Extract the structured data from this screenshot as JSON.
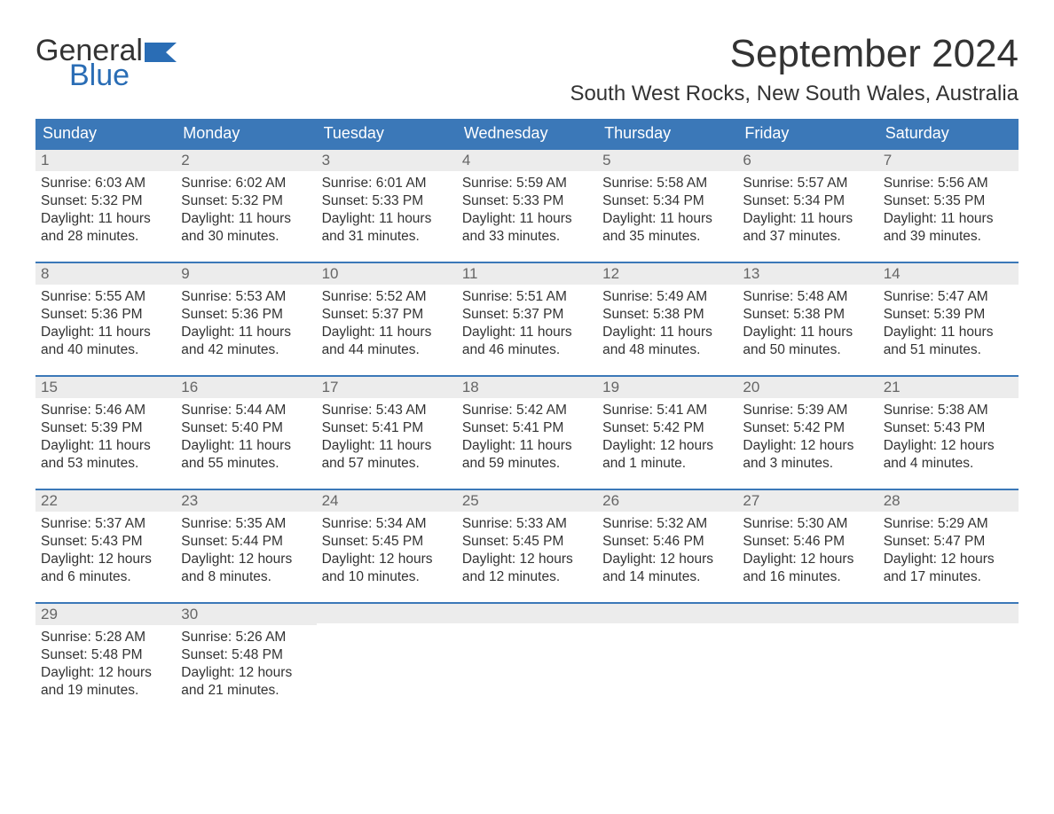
{
  "colors": {
    "header_bg": "#3b78b8",
    "header_text": "#ffffff",
    "daynum_bg": "#ececec",
    "daynum_text": "#666666",
    "body_text": "#333333",
    "logo_blue": "#2a6db5",
    "row_border": "#3b78b8",
    "page_bg": "#ffffff"
  },
  "typography": {
    "month_title_fontsize": 44,
    "location_fontsize": 24,
    "weekday_fontsize": 18,
    "daynum_fontsize": 17,
    "cell_fontsize": 15.5,
    "logo_fontsize": 34
  },
  "logo": {
    "line1": "General",
    "line2": "Blue"
  },
  "title": "September 2024",
  "location": "South West Rocks, New South Wales, Australia",
  "weekdays": [
    "Sunday",
    "Monday",
    "Tuesday",
    "Wednesday",
    "Thursday",
    "Friday",
    "Saturday"
  ],
  "calendar": {
    "type": "table",
    "columns": 7,
    "row_border_color": "#3b78b8",
    "weeks": [
      [
        {
          "day": "1",
          "sunrise": "Sunrise: 6:03 AM",
          "sunset": "Sunset: 5:32 PM",
          "dl1": "Daylight: 11 hours",
          "dl2": "and 28 minutes."
        },
        {
          "day": "2",
          "sunrise": "Sunrise: 6:02 AM",
          "sunset": "Sunset: 5:32 PM",
          "dl1": "Daylight: 11 hours",
          "dl2": "and 30 minutes."
        },
        {
          "day": "3",
          "sunrise": "Sunrise: 6:01 AM",
          "sunset": "Sunset: 5:33 PM",
          "dl1": "Daylight: 11 hours",
          "dl2": "and 31 minutes."
        },
        {
          "day": "4",
          "sunrise": "Sunrise: 5:59 AM",
          "sunset": "Sunset: 5:33 PM",
          "dl1": "Daylight: 11 hours",
          "dl2": "and 33 minutes."
        },
        {
          "day": "5",
          "sunrise": "Sunrise: 5:58 AM",
          "sunset": "Sunset: 5:34 PM",
          "dl1": "Daylight: 11 hours",
          "dl2": "and 35 minutes."
        },
        {
          "day": "6",
          "sunrise": "Sunrise: 5:57 AM",
          "sunset": "Sunset: 5:34 PM",
          "dl1": "Daylight: 11 hours",
          "dl2": "and 37 minutes."
        },
        {
          "day": "7",
          "sunrise": "Sunrise: 5:56 AM",
          "sunset": "Sunset: 5:35 PM",
          "dl1": "Daylight: 11 hours",
          "dl2": "and 39 minutes."
        }
      ],
      [
        {
          "day": "8",
          "sunrise": "Sunrise: 5:55 AM",
          "sunset": "Sunset: 5:36 PM",
          "dl1": "Daylight: 11 hours",
          "dl2": "and 40 minutes."
        },
        {
          "day": "9",
          "sunrise": "Sunrise: 5:53 AM",
          "sunset": "Sunset: 5:36 PM",
          "dl1": "Daylight: 11 hours",
          "dl2": "and 42 minutes."
        },
        {
          "day": "10",
          "sunrise": "Sunrise: 5:52 AM",
          "sunset": "Sunset: 5:37 PM",
          "dl1": "Daylight: 11 hours",
          "dl2": "and 44 minutes."
        },
        {
          "day": "11",
          "sunrise": "Sunrise: 5:51 AM",
          "sunset": "Sunset: 5:37 PM",
          "dl1": "Daylight: 11 hours",
          "dl2": "and 46 minutes."
        },
        {
          "day": "12",
          "sunrise": "Sunrise: 5:49 AM",
          "sunset": "Sunset: 5:38 PM",
          "dl1": "Daylight: 11 hours",
          "dl2": "and 48 minutes."
        },
        {
          "day": "13",
          "sunrise": "Sunrise: 5:48 AM",
          "sunset": "Sunset: 5:38 PM",
          "dl1": "Daylight: 11 hours",
          "dl2": "and 50 minutes."
        },
        {
          "day": "14",
          "sunrise": "Sunrise: 5:47 AM",
          "sunset": "Sunset: 5:39 PM",
          "dl1": "Daylight: 11 hours",
          "dl2": "and 51 minutes."
        }
      ],
      [
        {
          "day": "15",
          "sunrise": "Sunrise: 5:46 AM",
          "sunset": "Sunset: 5:39 PM",
          "dl1": "Daylight: 11 hours",
          "dl2": "and 53 minutes."
        },
        {
          "day": "16",
          "sunrise": "Sunrise: 5:44 AM",
          "sunset": "Sunset: 5:40 PM",
          "dl1": "Daylight: 11 hours",
          "dl2": "and 55 minutes."
        },
        {
          "day": "17",
          "sunrise": "Sunrise: 5:43 AM",
          "sunset": "Sunset: 5:41 PM",
          "dl1": "Daylight: 11 hours",
          "dl2": "and 57 minutes."
        },
        {
          "day": "18",
          "sunrise": "Sunrise: 5:42 AM",
          "sunset": "Sunset: 5:41 PM",
          "dl1": "Daylight: 11 hours",
          "dl2": "and 59 minutes."
        },
        {
          "day": "19",
          "sunrise": "Sunrise: 5:41 AM",
          "sunset": "Sunset: 5:42 PM",
          "dl1": "Daylight: 12 hours",
          "dl2": "and 1 minute."
        },
        {
          "day": "20",
          "sunrise": "Sunrise: 5:39 AM",
          "sunset": "Sunset: 5:42 PM",
          "dl1": "Daylight: 12 hours",
          "dl2": "and 3 minutes."
        },
        {
          "day": "21",
          "sunrise": "Sunrise: 5:38 AM",
          "sunset": "Sunset: 5:43 PM",
          "dl1": "Daylight: 12 hours",
          "dl2": "and 4 minutes."
        }
      ],
      [
        {
          "day": "22",
          "sunrise": "Sunrise: 5:37 AM",
          "sunset": "Sunset: 5:43 PM",
          "dl1": "Daylight: 12 hours",
          "dl2": "and 6 minutes."
        },
        {
          "day": "23",
          "sunrise": "Sunrise: 5:35 AM",
          "sunset": "Sunset: 5:44 PM",
          "dl1": "Daylight: 12 hours",
          "dl2": "and 8 minutes."
        },
        {
          "day": "24",
          "sunrise": "Sunrise: 5:34 AM",
          "sunset": "Sunset: 5:45 PM",
          "dl1": "Daylight: 12 hours",
          "dl2": "and 10 minutes."
        },
        {
          "day": "25",
          "sunrise": "Sunrise: 5:33 AM",
          "sunset": "Sunset: 5:45 PM",
          "dl1": "Daylight: 12 hours",
          "dl2": "and 12 minutes."
        },
        {
          "day": "26",
          "sunrise": "Sunrise: 5:32 AM",
          "sunset": "Sunset: 5:46 PM",
          "dl1": "Daylight: 12 hours",
          "dl2": "and 14 minutes."
        },
        {
          "day": "27",
          "sunrise": "Sunrise: 5:30 AM",
          "sunset": "Sunset: 5:46 PM",
          "dl1": "Daylight: 12 hours",
          "dl2": "and 16 minutes."
        },
        {
          "day": "28",
          "sunrise": "Sunrise: 5:29 AM",
          "sunset": "Sunset: 5:47 PM",
          "dl1": "Daylight: 12 hours",
          "dl2": "and 17 minutes."
        }
      ],
      [
        {
          "day": "29",
          "sunrise": "Sunrise: 5:28 AM",
          "sunset": "Sunset: 5:48 PM",
          "dl1": "Daylight: 12 hours",
          "dl2": "and 19 minutes."
        },
        {
          "day": "30",
          "sunrise": "Sunrise: 5:26 AM",
          "sunset": "Sunset: 5:48 PM",
          "dl1": "Daylight: 12 hours",
          "dl2": "and 21 minutes."
        },
        {
          "day": "",
          "sunrise": "",
          "sunset": "",
          "dl1": "",
          "dl2": ""
        },
        {
          "day": "",
          "sunrise": "",
          "sunset": "",
          "dl1": "",
          "dl2": ""
        },
        {
          "day": "",
          "sunrise": "",
          "sunset": "",
          "dl1": "",
          "dl2": ""
        },
        {
          "day": "",
          "sunrise": "",
          "sunset": "",
          "dl1": "",
          "dl2": ""
        },
        {
          "day": "",
          "sunrise": "",
          "sunset": "",
          "dl1": "",
          "dl2": ""
        }
      ]
    ]
  }
}
